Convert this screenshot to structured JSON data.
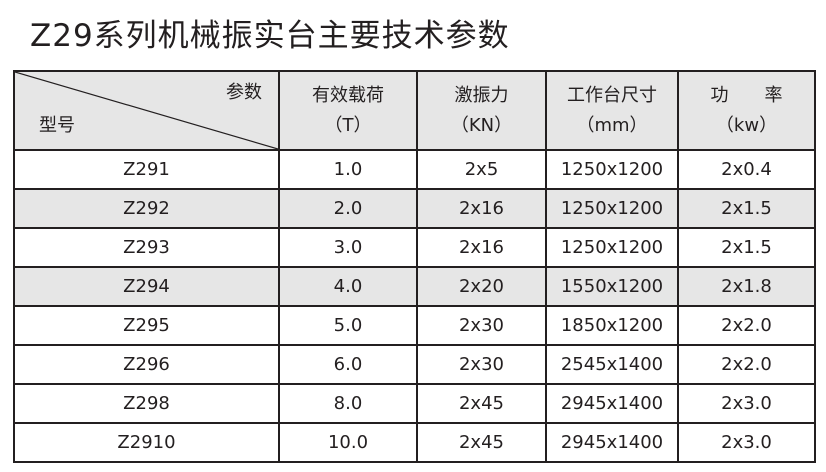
{
  "title": "Z29系列机械振实台主要技术参数",
  "header": {
    "diag_top": "参数",
    "diag_bottom": "型号",
    "cols": [
      {
        "name": "有效载荷",
        "unit": "（T）"
      },
      {
        "name": "激振力",
        "unit": "（KN）"
      },
      {
        "name": "工作台尺寸",
        "unit": "（mm）"
      },
      {
        "name": "功　　率",
        "unit": "（kw）"
      }
    ]
  },
  "rows": [
    {
      "model": "Z291",
      "load": "1.0",
      "force": "2x5",
      "size": "1250x1200",
      "power": "2x0.4"
    },
    {
      "model": "Z292",
      "load": "2.0",
      "force": "2x16",
      "size": "1250x1200",
      "power": "2x1.5"
    },
    {
      "model": "Z293",
      "load": "3.0",
      "force": "2x16",
      "size": "1250x1200",
      "power": "2x1.5"
    },
    {
      "model": "Z294",
      "load": "4.0",
      "force": "2x20",
      "size": "1550x1200",
      "power": "2x1.8"
    },
    {
      "model": "Z295",
      "load": "5.0",
      "force": "2x30",
      "size": "1850x1200",
      "power": "2x2.0"
    },
    {
      "model": "Z296",
      "load": "6.0",
      "force": "2x30",
      "size": "2545x1400",
      "power": "2x2.0"
    },
    {
      "model": "Z298",
      "load": "8.0",
      "force": "2x45",
      "size": "2945x1400",
      "power": "2x3.0"
    },
    {
      "model": "Z2910",
      "load": "10.0",
      "force": "2x45",
      "size": "2945x1400",
      "power": "2x3.0"
    }
  ]
}
